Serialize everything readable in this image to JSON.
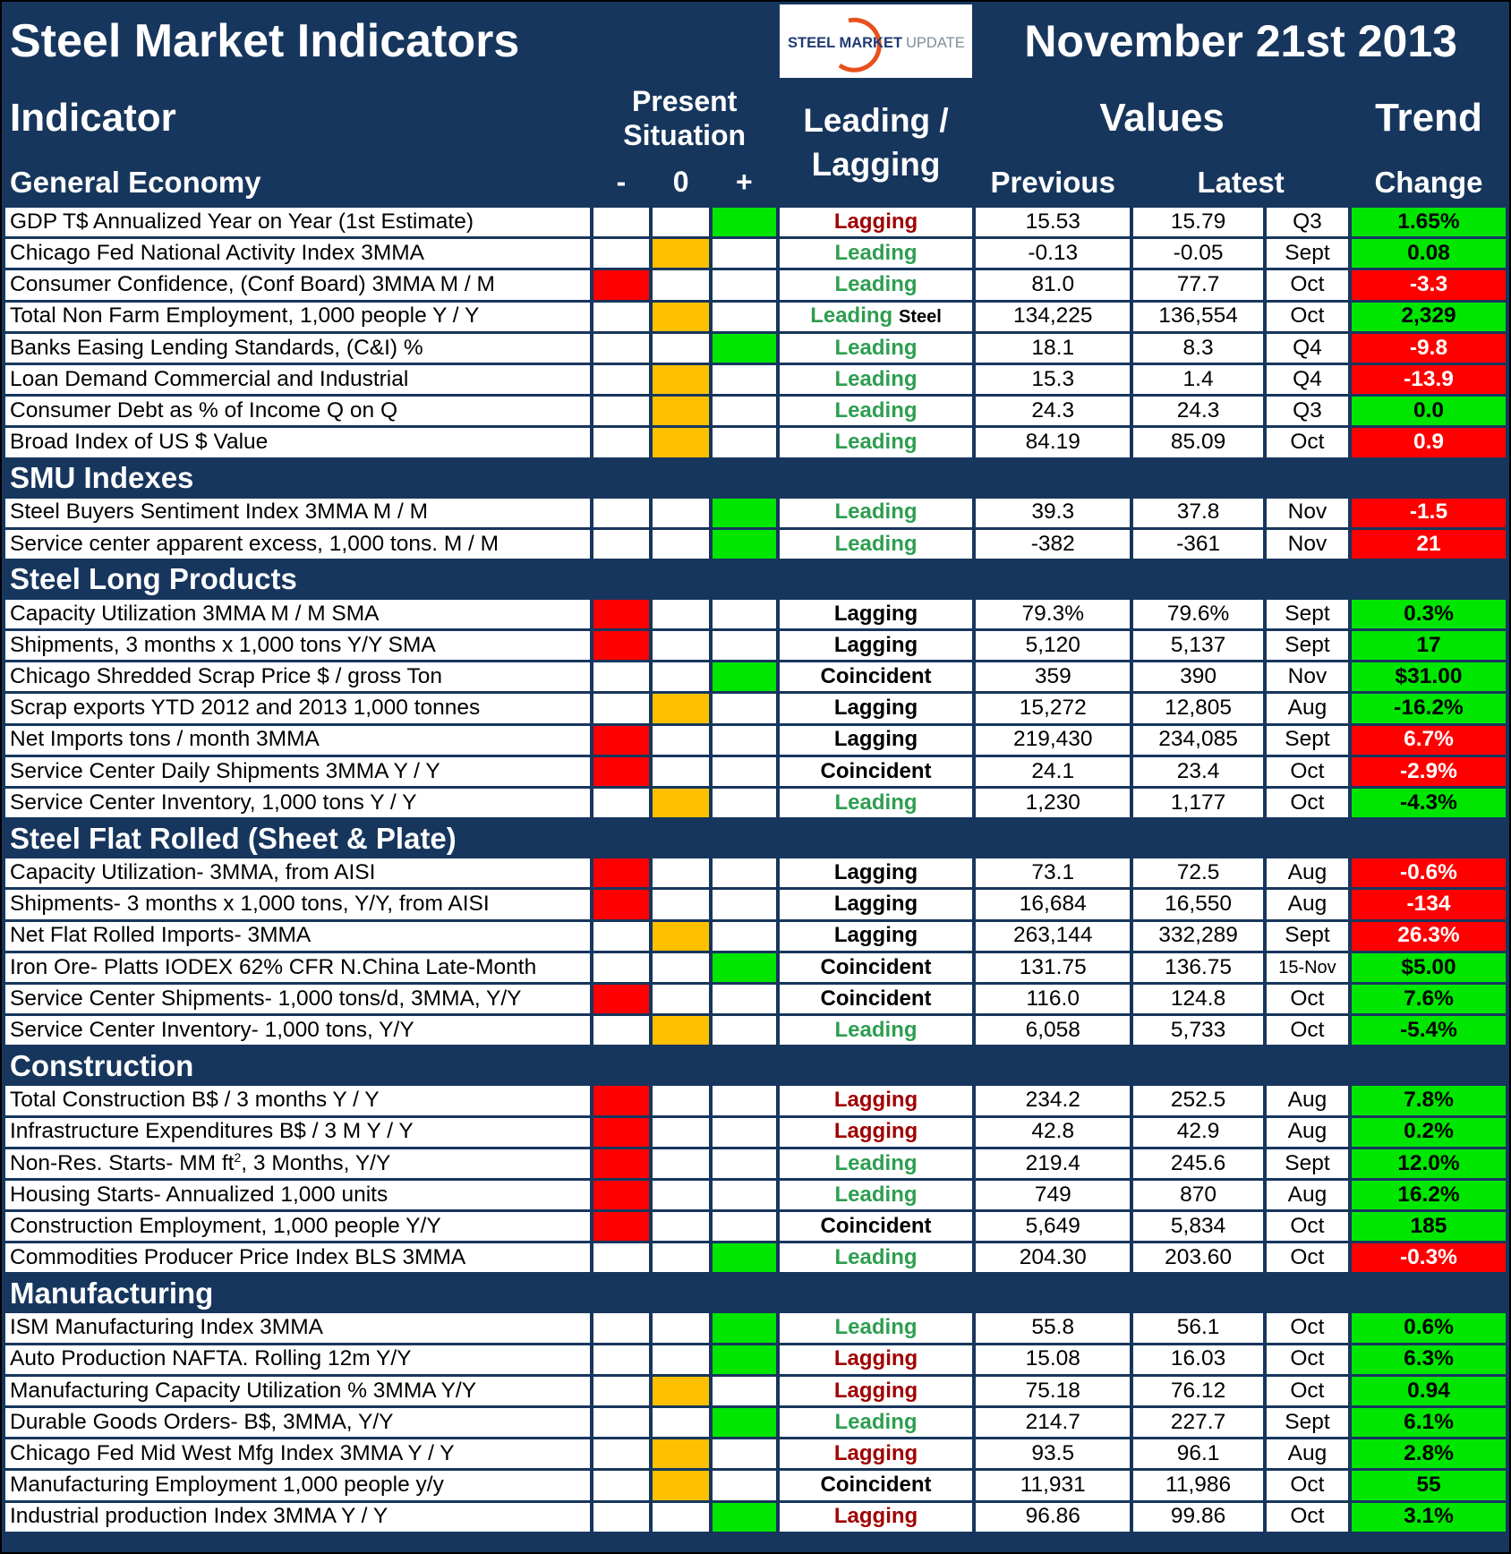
{
  "header": {
    "title": "Steel Market Indicators",
    "logo_bold": "STEEL MARKET",
    "logo_light": "UPDATE",
    "date": "November 21st 2013",
    "indicator": "Indicator",
    "present_situation": "Present Situation",
    "situation": [
      "-",
      "0",
      "+"
    ],
    "leading_lagging": "Leading / Lagging",
    "values": "Values",
    "trend": "Trend",
    "previous": "Previous",
    "latest": "Latest",
    "change": "Change"
  },
  "colors": {
    "navy": "#17365d",
    "situation": {
      "-": "#ff0000",
      "0": "#ffc000",
      "+": "#00e600"
    },
    "change_text": {
      "#ff0000": "#ffffff",
      "#00e600": "#000000"
    }
  },
  "sections": [
    {
      "name": "General Economy",
      "rows": [
        {
          "indicator": "GDP T$ Annualized Year on Year (1st Estimate)",
          "situation": "+",
          "lead": "Lagging",
          "lead_color": "#a00000",
          "previous": "15.53",
          "latest": "15.79",
          "period": "Q3",
          "change": "1.65%",
          "change_color": "#00e600"
        },
        {
          "indicator": "Chicago Fed National Activity Index 3MMA",
          "situation": "0",
          "lead": "Leading",
          "lead_color": "#2e9e50",
          "previous": "-0.13",
          "latest": "-0.05",
          "period": "Sept",
          "change": "0.08",
          "change_color": "#00e600"
        },
        {
          "indicator": "Consumer Confidence, (Conf Board) 3MMA M / M",
          "situation": "-",
          "lead": "Leading",
          "lead_color": "#2e9e50",
          "previous": "81.0",
          "latest": "77.7",
          "period": "Oct",
          "change": "-3.3",
          "change_color": "#ff0000"
        },
        {
          "indicator": "Total Non Farm Employment, 1,000 people Y / Y",
          "situation": "0",
          "lead": "Leading",
          "lead_note": "Steel",
          "lead_color": "#2e9e50",
          "previous": "134,225",
          "latest": "136,554",
          "period": "Oct",
          "change": "2,329",
          "change_color": "#00e600"
        },
        {
          "indicator": "Banks Easing Lending Standards, (C&I) %",
          "situation": "+",
          "lead": "Leading",
          "lead_color": "#2e9e50",
          "previous": "18.1",
          "latest": "8.3",
          "period": "Q4",
          "change": "-9.8",
          "change_color": "#ff0000"
        },
        {
          "indicator": "Loan Demand Commercial and Industrial",
          "situation": "0",
          "lead": "Leading",
          "lead_color": "#2e9e50",
          "previous": "15.3",
          "latest": "1.4",
          "period": "Q4",
          "change": "-13.9",
          "change_color": "#ff0000"
        },
        {
          "indicator": "Consumer Debt as % of Income Q on Q",
          "situation": "0",
          "lead": "Leading",
          "lead_color": "#2e9e50",
          "previous": "24.3",
          "latest": "24.3",
          "period": "Q3",
          "change": "0.0",
          "change_color": "#00e600"
        },
        {
          "indicator": "Broad Index of US $ Value",
          "situation": "0",
          "lead": "Leading",
          "lead_color": "#2e9e50",
          "previous": "84.19",
          "latest": "85.09",
          "period": "Oct",
          "change": "0.9",
          "change_color": "#ff0000"
        }
      ]
    },
    {
      "name": "SMU Indexes",
      "rows": [
        {
          "indicator": "Steel Buyers Sentiment Index 3MMA M / M",
          "situation": "+",
          "lead": "Leading",
          "lead_color": "#2e9e50",
          "previous": "39.3",
          "latest": "37.8",
          "period": "Nov",
          "change": "-1.5",
          "change_color": "#ff0000"
        },
        {
          "indicator": "Service center apparent excess, 1,000 tons. M / M",
          "situation": "+",
          "lead": "Leading",
          "lead_color": "#2e9e50",
          "previous": "-382",
          "latest": "-361",
          "period": "Nov",
          "change": "21",
          "change_color": "#ff0000"
        }
      ]
    },
    {
      "name": "Steel Long Products",
      "rows": [
        {
          "indicator": "Capacity Utilization 3MMA  M / M SMA",
          "situation": "-",
          "lead": "Lagging",
          "lead_color": "#000000",
          "previous": "79.3%",
          "latest": "79.6%",
          "period": "Sept",
          "change": "0.3%",
          "change_color": "#00e600"
        },
        {
          "indicator": "Shipments, 3 months x 1,000 tons Y/Y SMA",
          "situation": "-",
          "lead": "Lagging",
          "lead_color": "#000000",
          "previous": "5,120",
          "latest": "5,137",
          "period": "Sept",
          "change": "17",
          "change_color": "#00e600"
        },
        {
          "indicator": "Chicago Shredded Scrap Price $ / gross Ton",
          "situation": "+",
          "lead": "Coincident",
          "lead_color": "#000000",
          "previous": "359",
          "latest": "390",
          "period": "Nov",
          "change": "$31.00",
          "change_color": "#00e600"
        },
        {
          "indicator": "Scrap exports YTD 2012 and 2013 1,000 tonnes",
          "situation": "0",
          "lead": "Lagging",
          "lead_color": "#000000",
          "previous": "15,272",
          "latest": "12,805",
          "period": "Aug",
          "change": "-16.2%",
          "change_color": "#00e600"
        },
        {
          "indicator": "Net Imports tons / month 3MMA",
          "situation": "-",
          "lead": "Lagging",
          "lead_color": "#000000",
          "previous": "219,430",
          "latest": "234,085",
          "period": "Sept",
          "change": "6.7%",
          "change_color": "#ff0000"
        },
        {
          "indicator": "Service Center Daily Shipments 3MMA Y / Y",
          "situation": "-",
          "lead": "Coincident",
          "lead_color": "#000000",
          "previous": "24.1",
          "latest": "23.4",
          "period": "Oct",
          "change": "-2.9%",
          "change_color": "#ff0000"
        },
        {
          "indicator": "Service Center Inventory, 1,000 tons Y / Y",
          "situation": "0",
          "lead": "Leading",
          "lead_color": "#2e9e50",
          "previous": "1,230",
          "latest": "1,177",
          "period": "Oct",
          "change": "-4.3%",
          "change_color": "#00e600"
        }
      ]
    },
    {
      "name": "Steel Flat Rolled (Sheet & Plate)",
      "rows": [
        {
          "indicator": "Capacity Utilization- 3MMA, from AISI",
          "situation": "-",
          "lead": "Lagging",
          "lead_color": "#000000",
          "previous": "73.1",
          "latest": "72.5",
          "period": "Aug",
          "change": "-0.6%",
          "change_color": "#ff0000"
        },
        {
          "indicator": "Shipments- 3 months x 1,000 tons, Y/Y, from AISI",
          "situation": "-",
          "lead": "Lagging",
          "lead_color": "#000000",
          "previous": "16,684",
          "latest": "16,550",
          "period": "Aug",
          "change": "-134",
          "change_color": "#ff0000"
        },
        {
          "indicator": "Net Flat Rolled Imports- 3MMA",
          "situation": "0",
          "lead": "Lagging",
          "lead_color": "#000000",
          "previous": "263,144",
          "latest": "332,289",
          "period": "Sept",
          "change": "26.3%",
          "change_color": "#ff0000"
        },
        {
          "indicator": "Iron Ore- Platts IODEX 62% CFR N.China Late-Month",
          "situation": "+",
          "lead": "Coincident",
          "lead_color": "#000000",
          "previous": "131.75",
          "latest": "136.75",
          "period": "15-Nov",
          "change": "$5.00",
          "change_color": "#00e600"
        },
        {
          "indicator": "Service Center Shipments- 1,000 tons/d, 3MMA, Y/Y",
          "situation": "-",
          "lead": "Coincident",
          "lead_color": "#000000",
          "previous": "116.0",
          "latest": "124.8",
          "period": "Oct",
          "change": "7.6%",
          "change_color": "#00e600"
        },
        {
          "indicator": "Service Center Inventory- 1,000 tons, Y/Y",
          "situation": "0",
          "lead": "Leading",
          "lead_color": "#2e9e50",
          "previous": "6,058",
          "latest": "5,733",
          "period": "Oct",
          "change": "-5.4%",
          "change_color": "#00e600"
        }
      ]
    },
    {
      "name": "Construction",
      "rows": [
        {
          "indicator": "Total Construction B$ /  3 months Y / Y",
          "situation": "-",
          "lead": "Lagging",
          "lead_color": "#a00000",
          "previous": "234.2",
          "latest": "252.5",
          "period": "Aug",
          "change": "7.8%",
          "change_color": "#00e600"
        },
        {
          "indicator": "Infrastructure Expenditures B$ / 3 M    Y / Y",
          "situation": "-",
          "lead": "Lagging",
          "lead_color": "#a00000",
          "previous": "42.8",
          "latest": "42.9",
          "period": "Aug",
          "change": "0.2%",
          "change_color": "#00e600"
        },
        {
          "indicator": "Non-Res. Starts- MM ft",
          "sup": "2",
          "indicator_end": ", 3 Months, Y/Y",
          "situation": "-",
          "lead": "Leading",
          "lead_color": "#2e9e50",
          "previous": "219.4",
          "latest": "245.6",
          "period": "Sept",
          "change": "12.0%",
          "change_color": "#00e600"
        },
        {
          "indicator": "Housing Starts- Annualized 1,000 units",
          "situation": "-",
          "lead": "Leading",
          "lead_color": "#2e9e50",
          "previous": "749",
          "latest": "870",
          "period": "Aug",
          "change": "16.2%",
          "change_color": "#00e600"
        },
        {
          "indicator": "Construction Employment, 1,000 people Y/Y",
          "situation": "-",
          "lead": "Coincident",
          "lead_color": "#000000",
          "previous": "5,649",
          "latest": "5,834",
          "period": "Oct",
          "change": "185",
          "change_color": "#00e600"
        },
        {
          "indicator": "Commodities Producer Price Index BLS 3MMA",
          "situation": "+",
          "lead": "Leading",
          "lead_color": "#2e9e50",
          "previous": "204.30",
          "latest": "203.60",
          "period": "Oct",
          "change": "-0.3%",
          "change_color": "#ff0000"
        }
      ]
    },
    {
      "name": "Manufacturing",
      "rows": [
        {
          "indicator": "ISM Manufacturing Index 3MMA",
          "situation": "+",
          "lead": "Leading",
          "lead_color": "#2e9e50",
          "previous": "55.8",
          "latest": "56.1",
          "period": "Oct",
          "change": "0.6%",
          "change_color": "#00e600"
        },
        {
          "indicator": "Auto Production NAFTA. Rolling 12m Y/Y",
          "situation": "+",
          "lead": "Lagging",
          "lead_color": "#a00000",
          "previous": "15.08",
          "latest": "16.03",
          "period": "Oct",
          "change": "6.3%",
          "change_color": "#00e600"
        },
        {
          "indicator": "Manufacturing Capacity Utilization % 3MMA Y/Y",
          "situation": "0",
          "lead": "Lagging",
          "lead_color": "#a00000",
          "previous": "75.18",
          "latest": "76.12",
          "period": "Oct",
          "change": "0.94",
          "change_color": "#00e600"
        },
        {
          "indicator": "Durable Goods Orders- B$, 3MMA, Y/Y",
          "situation": "+",
          "lead": "Leading",
          "lead_color": "#2e9e50",
          "previous": "214.7",
          "latest": "227.7",
          "period": "Sept",
          "change": "6.1%",
          "change_color": "#00e600"
        },
        {
          "indicator": "Chicago Fed Mid West Mfg Index 3MMA Y / Y",
          "situation": "0",
          "lead": "Lagging",
          "lead_color": "#a00000",
          "previous": "93.5",
          "latest": "96.1",
          "period": "Aug",
          "change": "2.8%",
          "change_color": "#00e600"
        },
        {
          "indicator": "Manufacturing Employment 1,000 people y/y",
          "situation": "0",
          "lead": "Coincident",
          "lead_color": "#000000",
          "previous": "11,931",
          "latest": "11,986",
          "period": "Oct",
          "change": "55",
          "change_color": "#00e600"
        },
        {
          "indicator": "Industrial production Index 3MMA Y / Y",
          "situation": "+",
          "lead": "Lagging",
          "lead_color": "#a00000",
          "previous": "96.86",
          "latest": "99.86",
          "period": "Oct",
          "change": "3.1%",
          "change_color": "#00e600"
        }
      ]
    }
  ]
}
